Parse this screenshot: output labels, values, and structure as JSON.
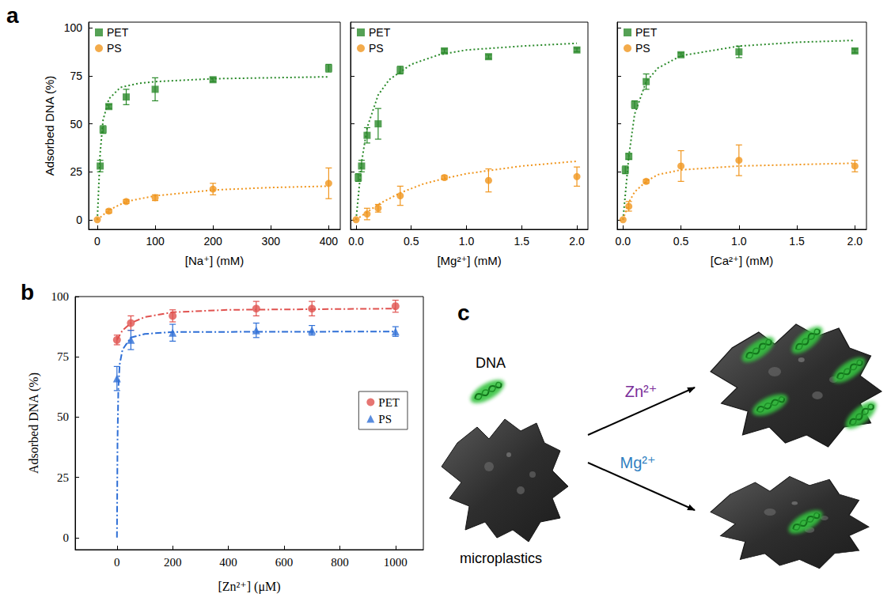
{
  "chart_data": [
    {
      "type": "scatter",
      "xlabel": "[Na⁺] (mM)",
      "ylabel": "Adsorbed DNA (%)",
      "xlim": [
        -15,
        420
      ],
      "xticks": [
        0,
        100,
        200,
        300,
        400
      ],
      "ylim": [
        -5,
        103
      ],
      "yticks": [
        0,
        25,
        50,
        75,
        100
      ],
      "grid": false,
      "legend": "top-left",
      "series": [
        {
          "name": "PET",
          "color": "#2a8a2a",
          "marker": "square",
          "line_style": "dotted",
          "x": [
            5,
            10,
            20,
            50,
            100,
            200,
            400
          ],
          "values": [
            28,
            47,
            59,
            64,
            68,
            73,
            79
          ],
          "errors": [
            3,
            2,
            1,
            4,
            6,
            1,
            2
          ],
          "fit": {
            "x": [
              0,
              2,
              5,
              10,
              20,
              40,
              70,
              100,
              200,
              300,
              400
            ],
            "values": [
              0,
              14,
              35,
              52,
              63,
              69,
              71,
              72,
              73.5,
              74,
              74.5
            ]
          }
        },
        {
          "name": "PS",
          "color": "#f0961e",
          "marker": "circle",
          "line_style": "dotted",
          "x": [
            0,
            20,
            50,
            100,
            200,
            400
          ],
          "values": [
            0,
            4.5,
            9.5,
            11.5,
            16,
            19
          ],
          "errors": [
            0,
            1,
            1,
            1.5,
            3,
            8
          ],
          "fit": {
            "x": [
              0,
              20,
              50,
              100,
              200,
              300,
              400
            ],
            "values": [
              0,
              5,
              9.5,
              12.5,
              15.5,
              16.8,
              17.5
            ]
          }
        }
      ]
    },
    {
      "type": "scatter",
      "xlabel": "[Mg²⁺] (mM)",
      "xlim": [
        -0.05,
        2.1
      ],
      "xticks": [
        {
          "value": 0,
          "label": "0.0"
        },
        0.5,
        {
          "value": 1,
          "label": "1.0"
        },
        1.5,
        {
          "value": 2,
          "label": "2.0"
        }
      ],
      "ylim": [
        -5,
        103
      ],
      "yticks": [
        0,
        25,
        50,
        75,
        100
      ],
      "tick_labels": "x",
      "grid": false,
      "legend": "top-left",
      "series": [
        {
          "name": "PET",
          "color": "#2a8a2a",
          "marker": "square",
          "line_style": "dotted",
          "x": [
            0.02,
            0.05,
            0.1,
            0.2,
            0.4,
            0.8,
            1.2,
            2
          ],
          "values": [
            22,
            28,
            44,
            50,
            78,
            88,
            85,
            88.5
          ],
          "errors": [
            2,
            3,
            4,
            8,
            2,
            1,
            1,
            1
          ],
          "fit": {
            "x": [
              0,
              0.05,
              0.1,
              0.2,
              0.3,
              0.5,
              0.75,
              1,
              1.5,
              2
            ],
            "values": [
              0,
              30,
              48,
              65,
              73,
              81,
              86,
              88.5,
              90.5,
              92
            ]
          }
        },
        {
          "name": "PS",
          "color": "#f0961e",
          "marker": "circle",
          "line_style": "dotted",
          "x": [
            0,
            0.1,
            0.2,
            0.4,
            0.8,
            1.2,
            2
          ],
          "values": [
            0,
            3,
            6,
            12.5,
            22,
            20.5,
            22.5
          ],
          "errors": [
            0,
            3,
            2,
            5,
            1,
            6,
            5
          ],
          "fit": {
            "x": [
              0,
              0.2,
              0.4,
              0.6,
              0.8,
              1,
              1.5,
              2
            ],
            "values": [
              0,
              8,
              14,
              18.5,
              21.5,
              24,
              28,
              30.5
            ]
          }
        }
      ]
    },
    {
      "type": "scatter",
      "xlabel": "[Ca²⁺] (mM)",
      "xlim": [
        -0.05,
        2.1
      ],
      "xticks": [
        {
          "value": 0,
          "label": "0.0"
        },
        0.5,
        {
          "value": 1,
          "label": "1.0"
        },
        1.5,
        {
          "value": 2,
          "label": "2.0"
        }
      ],
      "ylim": [
        -5,
        103
      ],
      "yticks": [
        0,
        25,
        50,
        75,
        100
      ],
      "tick_labels": "x",
      "grid": false,
      "legend": "top-left",
      "series": [
        {
          "name": "PET",
          "color": "#2a8a2a",
          "marker": "square",
          "line_style": "dotted",
          "x": [
            0.02,
            0.05,
            0.1,
            0.2,
            0.5,
            1,
            2
          ],
          "values": [
            26,
            33,
            60,
            72,
            86,
            87.5,
            88
          ],
          "errors": [
            2,
            1.5,
            2,
            4,
            1,
            3,
            1
          ],
          "fit": {
            "x": [
              0,
              0.05,
              0.1,
              0.2,
              0.3,
              0.5,
              1,
              1.5,
              2
            ],
            "values": [
              0,
              33,
              55,
              72,
              79,
              85.5,
              90.5,
              92.5,
              93.5
            ]
          }
        },
        {
          "name": "PS",
          "color": "#f0961e",
          "marker": "circle",
          "line_style": "dotted",
          "x": [
            0,
            0.05,
            0.2,
            0.5,
            1,
            2
          ],
          "values": [
            0,
            7,
            20,
            28,
            31,
            28
          ],
          "errors": [
            0,
            2.5,
            1,
            8,
            8,
            3
          ],
          "fit": {
            "x": [
              0,
              0.05,
              0.1,
              0.2,
              0.3,
              0.5,
              1,
              2
            ],
            "values": [
              0,
              9,
              14.5,
              20,
              23.5,
              26,
              28,
              29.5
            ]
          }
        }
      ]
    },
    {
      "type": "scatter",
      "xlabel": "[Zn²⁺] (μM)",
      "ylabel": "Adsorbed DNA (%)",
      "xlim": [
        -150,
        1100
      ],
      "xticks": [
        0,
        200,
        400,
        600,
        800,
        1000
      ],
      "ylim": [
        -5,
        100
      ],
      "yticks": [
        0,
        25,
        50,
        75,
        100
      ],
      "grid": false,
      "legend": "right",
      "series": [
        {
          "name": "PET",
          "color": "#e0524f",
          "marker": "circle",
          "line_style": "dashdot",
          "x": [
            0,
            50,
            200,
            500,
            700,
            1000
          ],
          "values": [
            82,
            89,
            92,
            95,
            95,
            96
          ],
          "errors": [
            2,
            3,
            2.5,
            3,
            3,
            2.5
          ],
          "fit": {
            "x": [
              0,
              20,
              50,
              100,
              200,
              400,
              1000
            ],
            "values": [
              82,
              86,
              89,
              91.5,
              93.5,
              94.5,
              95
            ]
          }
        },
        {
          "name": "PS",
          "color": "#2f6fd6",
          "marker": "triangle",
          "line_style": "dashdot",
          "x": [
            0,
            50,
            200,
            500,
            700,
            1000
          ],
          "values": [
            66,
            82,
            85,
            86,
            86,
            85.5
          ],
          "errors": [
            5,
            4,
            3.5,
            3,
            2,
            2
          ],
          "fit": {
            "x": [
              0,
              2,
              5,
              10,
              20,
              50,
              100,
              200,
              1000
            ],
            "values": [
              0,
              40,
              62,
              72,
              78,
              83,
              84.5,
              85.3,
              85.5
            ]
          }
        }
      ]
    }
  ],
  "panel_labels": [
    "a",
    "b",
    "c"
  ],
  "diagram": {
    "dna": "DNA",
    "particle": "microplastics",
    "arrows": [
      {
        "label": "Zn²⁺",
        "color": "#7a2f9a"
      },
      {
        "label": "Mg²⁺",
        "color": "#2f7fc1"
      }
    ]
  }
}
